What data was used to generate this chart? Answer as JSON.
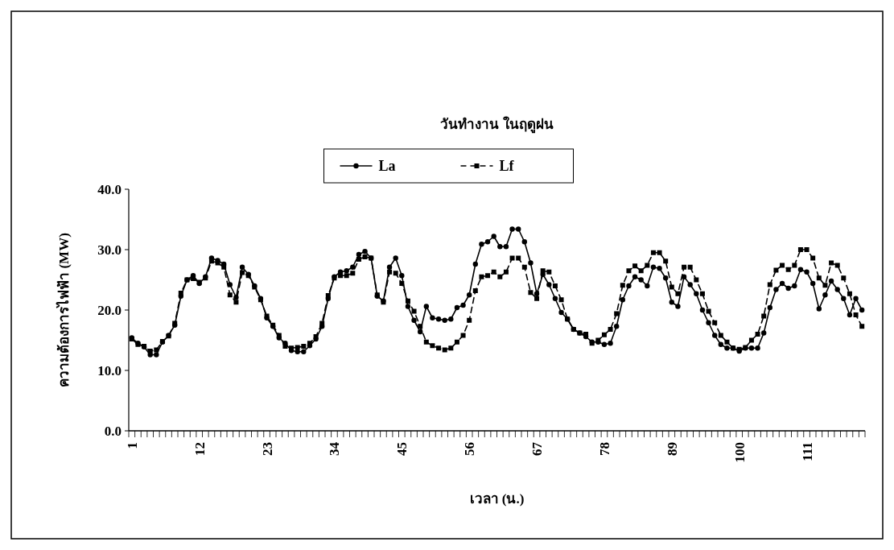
{
  "chart_data": {
    "type": "line",
    "title": "วันทำงาน ในฤดูฝน",
    "xlabel": "เวลา (น.)",
    "ylabel": "ความต้องการไฟฟ้า (MW)",
    "categories": [
      "1",
      null,
      null,
      null,
      null,
      null,
      null,
      null,
      null,
      null,
      null,
      "12",
      null,
      null,
      null,
      null,
      null,
      null,
      null,
      null,
      null,
      null,
      "23",
      null,
      null,
      null,
      null,
      null,
      null,
      null,
      null,
      null,
      null,
      "34",
      null,
      null,
      null,
      null,
      null,
      null,
      null,
      null,
      null,
      null,
      "45",
      null,
      null,
      null,
      null,
      null,
      null,
      null,
      null,
      null,
      null,
      "56",
      null,
      null,
      null,
      null,
      null,
      null,
      null,
      null,
      null,
      null,
      "67",
      null,
      null,
      null,
      null,
      null,
      null,
      null,
      null,
      null,
      null,
      "78",
      null,
      null,
      null,
      null,
      null,
      null,
      null,
      null,
      null,
      null,
      "89",
      null,
      null,
      null,
      null,
      null,
      null,
      null,
      null,
      null,
      null,
      "100",
      null,
      null,
      null,
      null,
      null,
      null,
      null,
      null,
      null,
      null,
      "111",
      null,
      null,
      null,
      null,
      null,
      null,
      null,
      null,
      null
    ],
    "ylim": [
      0,
      40
    ],
    "yticks": [
      {
        "value": 0,
        "label": "0.0"
      },
      {
        "value": 10,
        "label": "10.0"
      },
      {
        "value": 20,
        "label": "20.0"
      },
      {
        "value": 30,
        "label": "30.0"
      },
      {
        "value": 40,
        "label": "40.0"
      }
    ],
    "grid": false,
    "legend": "top",
    "series": [
      {
        "name": "La",
        "color": "#000000",
        "marker": "circle",
        "line_style": "solid",
        "values": [
          15.4,
          14.5,
          13.9,
          12.6,
          12.6,
          14.7,
          15.8,
          17.5,
          22.3,
          25.0,
          25.7,
          24.4,
          25.5,
          28.6,
          28.2,
          27.6,
          24.2,
          22.1,
          27.1,
          25.9,
          24.0,
          21.9,
          18.7,
          17.3,
          15.4,
          14.5,
          13.3,
          13.1,
          13.1,
          14.1,
          15.2,
          17.3,
          21.9,
          25.5,
          26.3,
          26.5,
          27.1,
          29.2,
          29.7,
          28.6,
          22.3,
          21.5,
          27.1,
          28.6,
          25.7,
          20.6,
          18.3,
          16.4,
          20.6,
          18.7,
          18.5,
          18.3,
          18.5,
          20.4,
          20.8,
          22.5,
          27.6,
          30.9,
          31.3,
          32.2,
          30.5,
          30.5,
          33.4,
          33.4,
          31.3,
          27.8,
          22.7,
          25.9,
          24.2,
          21.9,
          19.6,
          18.5,
          16.8,
          16.2,
          15.6,
          14.7,
          14.7,
          14.3,
          14.5,
          17.3,
          21.7,
          24.0,
          25.5,
          25.0,
          24.0,
          27.1,
          26.9,
          25.3,
          21.3,
          20.6,
          25.5,
          24.2,
          22.7,
          20.0,
          17.9,
          15.8,
          14.3,
          13.7,
          13.7,
          13.2,
          13.7,
          13.7,
          13.7,
          16.2,
          20.4,
          23.4,
          24.4,
          23.6,
          24.0,
          26.7,
          26.3,
          24.4,
          20.2,
          22.5,
          24.8,
          23.4,
          21.9,
          19.2,
          21.9,
          20.0
        ]
      },
      {
        "name": "Lf",
        "color": "#000000",
        "marker": "square",
        "line_style": "dashed",
        "values": [
          15.2,
          14.3,
          14.0,
          13.2,
          13.4,
          14.8,
          15.7,
          17.8,
          22.8,
          25.0,
          25.2,
          24.6,
          25.3,
          28.1,
          27.8,
          27.1,
          22.5,
          21.3,
          26.2,
          25.7,
          23.8,
          21.7,
          19.0,
          17.5,
          15.8,
          14.0,
          13.7,
          13.8,
          14.0,
          14.5,
          15.6,
          17.8,
          22.4,
          25.3,
          25.7,
          25.7,
          26.1,
          28.4,
          28.8,
          28.6,
          22.5,
          21.3,
          26.3,
          26.1,
          24.4,
          21.5,
          19.8,
          17.3,
          14.7,
          14.1,
          13.7,
          13.4,
          13.7,
          14.7,
          15.8,
          18.3,
          23.2,
          25.5,
          25.7,
          26.3,
          25.5,
          26.3,
          28.6,
          28.6,
          27.1,
          22.9,
          21.9,
          26.5,
          26.3,
          24.0,
          21.7,
          18.5,
          16.8,
          16.2,
          16.0,
          14.5,
          15.0,
          15.9,
          16.8,
          19.4,
          24.1,
          26.5,
          27.3,
          26.5,
          27.4,
          29.5,
          29.5,
          28.1,
          23.8,
          22.7,
          27.1,
          27.1,
          25.0,
          22.7,
          19.8,
          17.9,
          15.8,
          14.7,
          13.7,
          13.5,
          13.8,
          15.0,
          16.0,
          19.0,
          24.2,
          26.6,
          27.4,
          26.7,
          27.4,
          30.0,
          30.0,
          28.6,
          25.3,
          24.1,
          27.8,
          27.4,
          25.3,
          22.7,
          19.2,
          17.3
        ]
      }
    ]
  }
}
